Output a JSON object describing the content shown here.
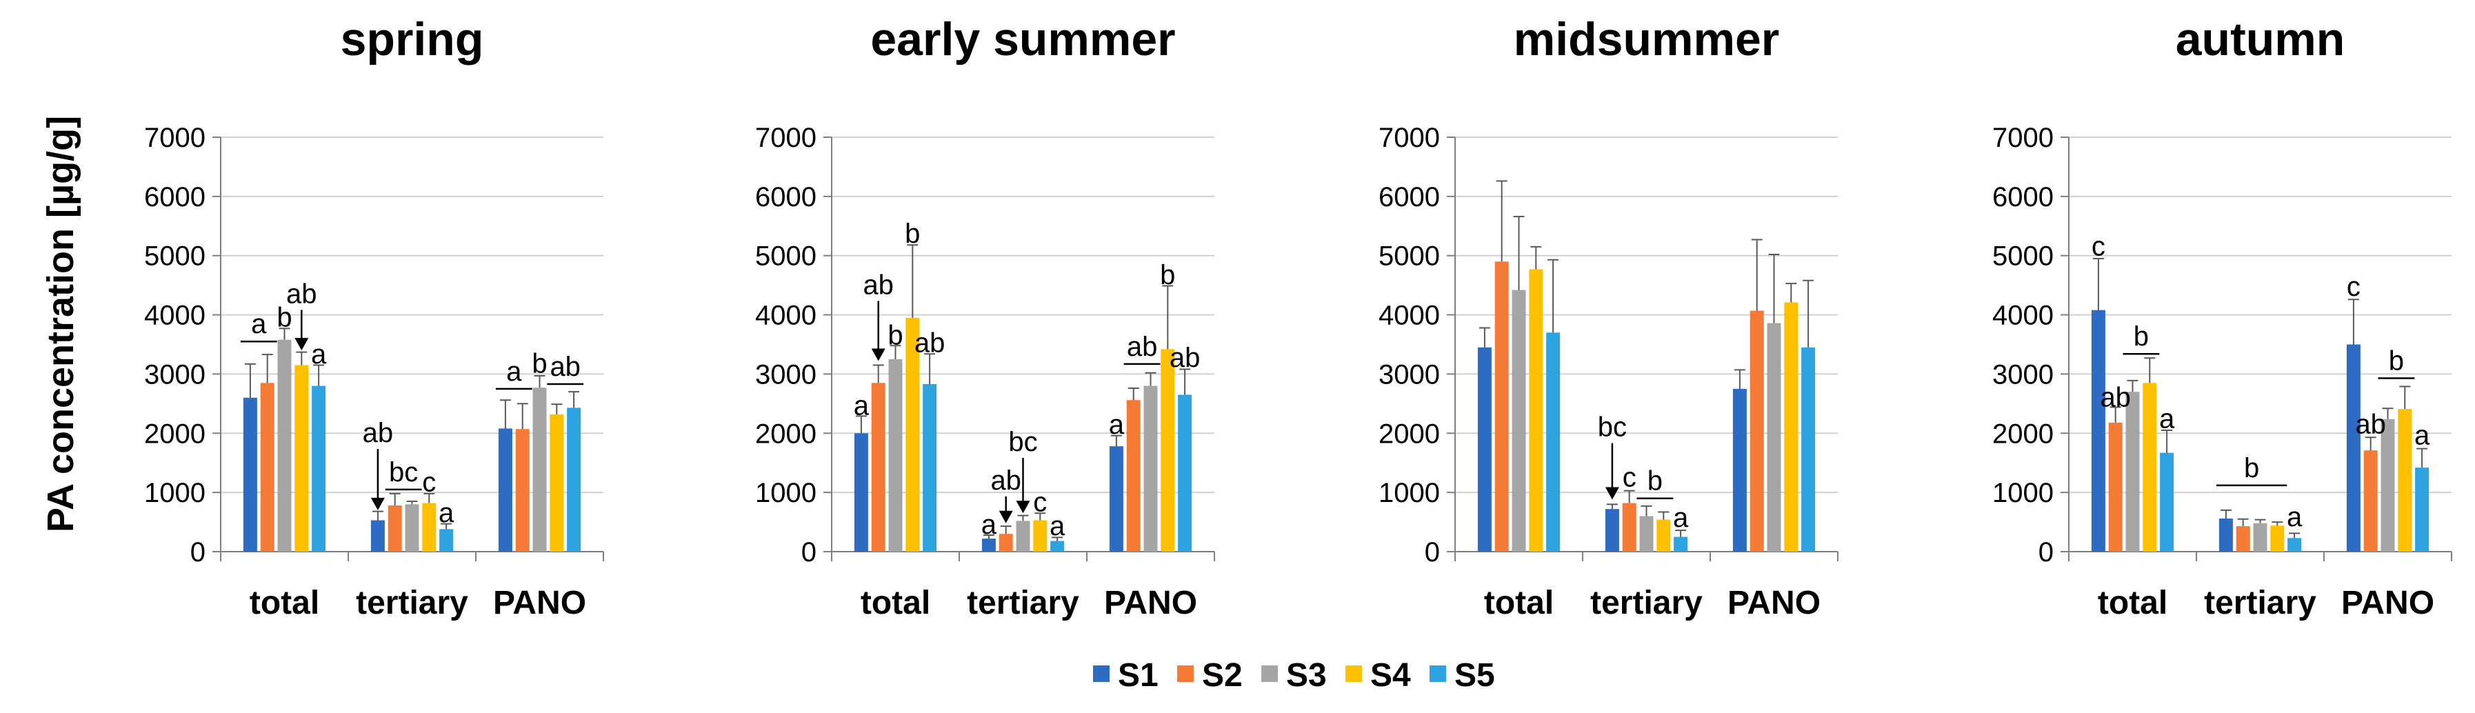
{
  "y_axis_label": "PA concentration [µg/g]",
  "legend": [
    {
      "label": "S1",
      "color": "#2e6bc2"
    },
    {
      "label": "S2",
      "color": "#f47a35"
    },
    {
      "label": "S3",
      "color": "#a5a5a5"
    },
    {
      "label": "S4",
      "color": "#ffc000"
    },
    {
      "label": "S5",
      "color": "#2ea3e0"
    }
  ],
  "chart_data": [
    {
      "type": "bar",
      "title": "spring",
      "categories": [
        "total",
        "tertiary",
        "PANO"
      ],
      "ylim": [
        0,
        7000
      ],
      "yticks": [
        0,
        1000,
        2000,
        3000,
        4000,
        5000,
        6000,
        7000
      ],
      "grid": true,
      "series": [
        {
          "name": "S1",
          "values": [
            2600,
            530,
            2080
          ],
          "errors": [
            570,
            150,
            480
          ]
        },
        {
          "name": "S2",
          "values": [
            2850,
            780,
            2070
          ],
          "errors": [
            480,
            200,
            430
          ]
        },
        {
          "name": "S3",
          "values": [
            3580,
            800,
            2770
          ],
          "errors": [
            190,
            50,
            200
          ]
        },
        {
          "name": "S4",
          "values": [
            3150,
            820,
            2320
          ],
          "errors": [
            220,
            160,
            170
          ]
        },
        {
          "name": "S5",
          "values": [
            2800,
            380,
            2430
          ],
          "errors": [
            350,
            90,
            270
          ]
        }
      ],
      "annotations": [
        {
          "text": "a",
          "category": 0,
          "from": 0,
          "to": 1,
          "y": 3550,
          "bar": true
        },
        {
          "text": "b",
          "category": 0,
          "from": 2,
          "to": 2,
          "y": 3800
        },
        {
          "text": "ab",
          "category": 0,
          "from": 3,
          "to": 3,
          "y": 4200,
          "arrow_to": 3400
        },
        {
          "text": "a",
          "category": 0,
          "from": 4,
          "to": 4,
          "y": 3180
        },
        {
          "text": "ab",
          "category": 1,
          "from": 0,
          "to": 0,
          "y": 1850,
          "arrow_to": 700
        },
        {
          "text": "bc",
          "category": 1,
          "from": 1,
          "to": 2,
          "y": 1050,
          "bar": true
        },
        {
          "text": "c",
          "category": 1,
          "from": 3,
          "to": 3,
          "y": 1020
        },
        {
          "text": "a",
          "category": 1,
          "from": 4,
          "to": 4,
          "y": 500
        },
        {
          "text": "a",
          "category": 2,
          "from": 0,
          "to": 1,
          "y": 2750,
          "bar": true
        },
        {
          "text": "b",
          "category": 2,
          "from": 2,
          "to": 2,
          "y": 3020
        },
        {
          "text": "ab",
          "category": 2,
          "from": 3,
          "to": 4,
          "y": 2830,
          "bar": true
        }
      ]
    },
    {
      "type": "bar",
      "title": "early summer",
      "categories": [
        "total",
        "tertiary",
        "PANO"
      ],
      "ylim": [
        0,
        7000
      ],
      "yticks": [
        0,
        1000,
        2000,
        3000,
        4000,
        5000,
        6000,
        7000
      ],
      "grid": true,
      "series": [
        {
          "name": "S1",
          "values": [
            2000,
            220,
            1780
          ],
          "errors": [
            290,
            60,
            180
          ]
        },
        {
          "name": "S2",
          "values": [
            2850,
            300,
            2560
          ],
          "errors": [
            300,
            130,
            200
          ]
        },
        {
          "name": "S3",
          "values": [
            3250,
            520,
            2800
          ],
          "errors": [
            230,
            90,
            220
          ]
        },
        {
          "name": "S4",
          "values": [
            3950,
            530,
            3420
          ],
          "errors": [
            1230,
            120,
            1070
          ]
        },
        {
          "name": "S5",
          "values": [
            2830,
            180,
            2650
          ],
          "errors": [
            510,
            60,
            430
          ]
        }
      ],
      "annotations": [
        {
          "text": "a",
          "category": 0,
          "from": 0,
          "to": 0,
          "y": 2310
        },
        {
          "text": "ab",
          "category": 0,
          "from": 1,
          "to": 1,
          "y": 4350,
          "arrow_to": 3220
        },
        {
          "text": "b",
          "category": 0,
          "from": 2,
          "to": 2,
          "y": 3500
        },
        {
          "text": "b",
          "category": 0,
          "from": 3,
          "to": 3,
          "y": 5220
        },
        {
          "text": "ab",
          "category": 0,
          "from": 4,
          "to": 4,
          "y": 3370
        },
        {
          "text": "a",
          "category": 1,
          "from": 0,
          "to": 0,
          "y": 300
        },
        {
          "text": "ab",
          "category": 1,
          "from": 1,
          "to": 1,
          "y": 1050,
          "arrow_to": 480
        },
        {
          "text": "bc",
          "category": 1,
          "from": 2,
          "to": 2,
          "y": 1700,
          "arrow_to": 650
        },
        {
          "text": "c",
          "category": 1,
          "from": 3,
          "to": 3,
          "y": 680
        },
        {
          "text": "a",
          "category": 1,
          "from": 4,
          "to": 4,
          "y": 280
        },
        {
          "text": "a",
          "category": 2,
          "from": 0,
          "to": 0,
          "y": 1990
        },
        {
          "text": "ab",
          "category": 2,
          "from": 1,
          "to": 2,
          "y": 3170,
          "bar": true
        },
        {
          "text": "b",
          "category": 2,
          "from": 3,
          "to": 3,
          "y": 4520
        },
        {
          "text": "ab",
          "category": 2,
          "from": 4,
          "to": 4,
          "y": 3120
        }
      ]
    },
    {
      "type": "bar",
      "title": "midsummer",
      "categories": [
        "total",
        "tertiary",
        "PANO"
      ],
      "ylim": [
        0,
        7000
      ],
      "yticks": [
        0,
        1000,
        2000,
        3000,
        4000,
        5000,
        6000,
        7000
      ],
      "grid": true,
      "series": [
        {
          "name": "S1",
          "values": [
            3450,
            720,
            2750
          ],
          "errors": [
            330,
            80,
            320
          ]
        },
        {
          "name": "S2",
          "values": [
            4900,
            820,
            4070
          ],
          "errors": [
            1360,
            210,
            1200
          ]
        },
        {
          "name": "S3",
          "values": [
            4420,
            600,
            3860
          ],
          "errors": [
            1240,
            170,
            1160
          ]
        },
        {
          "name": "S4",
          "values": [
            4770,
            540,
            4210
          ],
          "errors": [
            380,
            130,
            320
          ]
        },
        {
          "name": "S5",
          "values": [
            3700,
            250,
            3450
          ],
          "errors": [
            1230,
            110,
            1130
          ]
        }
      ],
      "annotations": [
        {
          "text": "bc",
          "category": 1,
          "from": 0,
          "to": 0,
          "y": 1950,
          "arrow_to": 880
        },
        {
          "text": "c",
          "category": 1,
          "from": 1,
          "to": 1,
          "y": 1100
        },
        {
          "text": "b",
          "category": 1,
          "from": 2,
          "to": 3,
          "y": 900,
          "bar": true
        },
        {
          "text": "a",
          "category": 1,
          "from": 4,
          "to": 4,
          "y": 420
        }
      ]
    },
    {
      "type": "bar",
      "title": "autumn",
      "categories": [
        "total",
        "tertiary",
        "PANO"
      ],
      "ylim": [
        0,
        7000
      ],
      "yticks": [
        0,
        1000,
        2000,
        3000,
        4000,
        5000,
        6000,
        7000
      ],
      "grid": true,
      "series": [
        {
          "name": "S1",
          "values": [
            4080,
            560,
            3500
          ],
          "errors": [
            870,
            140,
            760
          ]
        },
        {
          "name": "S2",
          "values": [
            2180,
            430,
            1710
          ],
          "errors": [
            260,
            120,
            220
          ]
        },
        {
          "name": "S3",
          "values": [
            2700,
            480,
            2240
          ],
          "errors": [
            190,
            60,
            180
          ]
        },
        {
          "name": "S4",
          "values": [
            2850,
            440,
            2410
          ],
          "errors": [
            420,
            60,
            380
          ]
        },
        {
          "name": "S5",
          "values": [
            1670,
            230,
            1420
          ],
          "errors": [
            380,
            80,
            320
          ]
        }
      ],
      "annotations": [
        {
          "text": "c",
          "category": 0,
          "from": 0,
          "to": 0,
          "y": 5000
        },
        {
          "text": "ab",
          "category": 0,
          "from": 1,
          "to": 1,
          "y": 2450
        },
        {
          "text": "b",
          "category": 0,
          "from": 2,
          "to": 3,
          "y": 3340,
          "bar": true
        },
        {
          "text": "a",
          "category": 0,
          "from": 4,
          "to": 4,
          "y": 2090
        },
        {
          "text": "b",
          "category": 1,
          "from": 0,
          "to": 3,
          "y": 1120,
          "bar": true
        },
        {
          "text": "a",
          "category": 1,
          "from": 4,
          "to": 4,
          "y": 430
        },
        {
          "text": "c",
          "category": 2,
          "from": 0,
          "to": 0,
          "y": 4320
        },
        {
          "text": "ab",
          "category": 2,
          "from": 1,
          "to": 1,
          "y": 2000
        },
        {
          "text": "b",
          "category": 2,
          "from": 2,
          "to": 3,
          "y": 2930,
          "bar": true
        },
        {
          "text": "a",
          "category": 2,
          "from": 4,
          "to": 4,
          "y": 1810
        }
      ]
    }
  ]
}
